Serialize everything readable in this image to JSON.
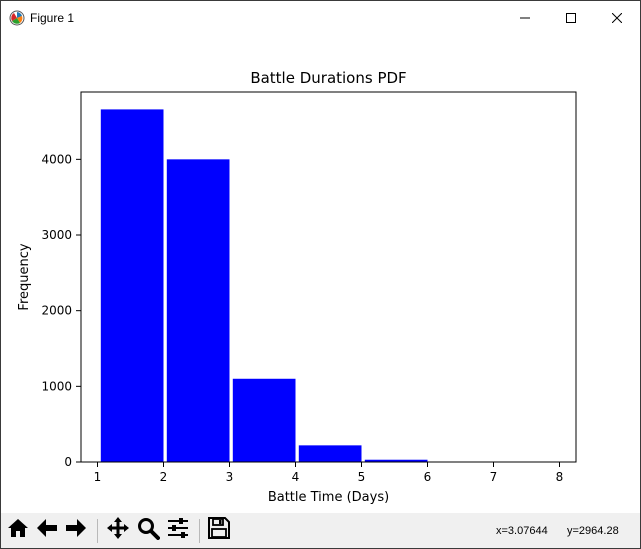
{
  "window": {
    "title": "Figure 1",
    "app_icon": "matplotlib-figure-icon",
    "controls": {
      "minimize_icon": "minimize-icon",
      "maximize_icon": "maximize-icon",
      "close_icon": "close-icon"
    }
  },
  "chart_data": {
    "type": "bar",
    "title": "Battle Durations PDF",
    "xlabel": "Battle Time (Days)",
    "ylabel": "Frequency",
    "color": "#0000ff",
    "xlim": [
      0.75,
      8.25
    ],
    "ylim": [
      0,
      4890
    ],
    "bar_width": 0.95,
    "bars": [
      {
        "left": 1.05,
        "value": 4660
      },
      {
        "left": 2.05,
        "value": 4000
      },
      {
        "left": 3.05,
        "value": 1100
      },
      {
        "left": 4.05,
        "value": 220
      },
      {
        "left": 5.05,
        "value": 30
      },
      {
        "left": 6.05,
        "value": 3
      },
      {
        "left": 7.05,
        "value": 1
      }
    ],
    "xticks": [
      1,
      2,
      3,
      4,
      5,
      6,
      7,
      8
    ],
    "xtick_labels": [
      "1",
      "2",
      "3",
      "4",
      "5",
      "6",
      "7",
      "8"
    ],
    "yticks": [
      0,
      1000,
      2000,
      3000,
      4000
    ],
    "ytick_labels": [
      "0",
      "1000",
      "2000",
      "3000",
      "4000"
    ],
    "grid": false,
    "legend": "none"
  },
  "toolbar": {
    "buttons": [
      {
        "name": "home-icon"
      },
      {
        "name": "back-icon"
      },
      {
        "name": "forward-icon"
      },
      {
        "name": "pan-icon"
      },
      {
        "name": "zoom-icon"
      },
      {
        "name": "configure-subplots-icon"
      },
      {
        "name": "save-icon"
      }
    ],
    "coord_x": "x=3.07644",
    "coord_y": "y=2964.28"
  }
}
